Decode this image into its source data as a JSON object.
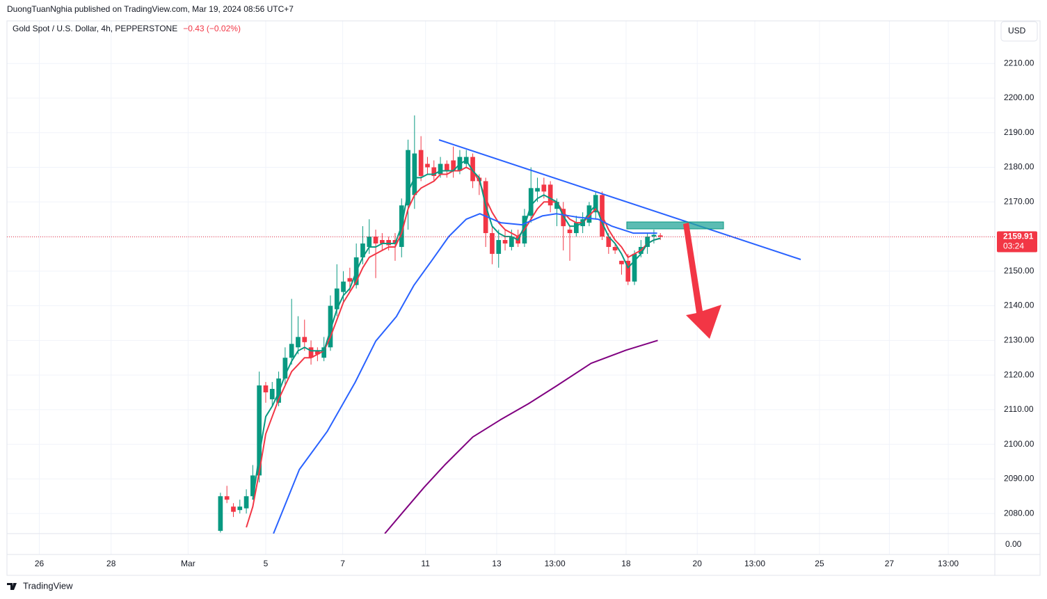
{
  "header": {
    "publisher": "DuongTuanNghia published on TradingView.com, Mar 19, 2024 08:56 UTC+7"
  },
  "chart_data": {
    "type": "candlestick",
    "title": "Gold Spot / U.S. Dollar, 4h, PEPPERSTONE",
    "change_label": "−0.43 (−0.02%)",
    "currency": "USD",
    "up_color": "#089981",
    "down_color": "#f23645",
    "x": [
      0,
      1,
      2,
      3,
      4,
      5,
      6,
      7,
      8,
      9,
      10,
      11,
      12,
      13,
      14,
      15,
      16,
      17,
      18,
      19,
      20,
      21,
      22,
      23,
      24,
      25,
      26,
      27,
      28,
      29,
      30,
      31,
      32,
      33,
      34,
      35,
      36,
      37,
      38,
      39,
      40,
      41,
      42,
      43,
      44,
      45,
      46,
      47,
      48,
      49,
      50,
      51,
      52,
      53,
      54,
      55,
      56,
      57,
      58,
      59,
      60,
      61,
      62,
      63,
      64,
      65,
      66,
      67,
      68
    ],
    "open": [
      2075,
      2085,
      2082,
      2081,
      2081.5,
      2085,
      2091,
      2117,
      2113,
      2112,
      2119,
      2125,
      2128,
      2131,
      2128,
      2127,
      2125,
      2128,
      2139,
      2144,
      2148,
      2146,
      2154,
      2157,
      2160,
      2159,
      2159,
      2159,
      2157,
      2169,
      2172,
      2185,
      2181,
      2180,
      2178,
      2181,
      2182,
      2179,
      2181,
      2183,
      2177,
      2176,
      2161,
      2155,
      2159,
      2157,
      2160,
      2158,
      2166,
      2173,
      2175,
      2175,
      2168,
      2168,
      2162,
      2161,
      2163,
      2164,
      2167,
      2172,
      2160,
      2157,
      2153,
      2153,
      2147,
      2155,
      2157,
      2160,
      2160.34
    ],
    "high": [
      2086,
      2088,
      2083,
      2084,
      2087,
      2094,
      2121,
      2118,
      2118,
      2121,
      2128,
      2142,
      2137,
      2136,
      2130,
      2128,
      2131,
      2143,
      2152,
      2150,
      2151,
      2158,
      2163,
      2165,
      2162,
      2161,
      2160,
      2161,
      2171,
      2188,
      2195,
      2189,
      2183,
      2182,
      2183,
      2182,
      2186,
      2185,
      2185,
      2184,
      2178,
      2177,
      2163,
      2162,
      2162,
      2162,
      2162,
      2168,
      2180,
      2177,
      2177,
      2176,
      2171,
      2170,
      2163,
      2166,
      2167,
      2170,
      2173,
      2173,
      2161,
      2158,
      2153,
      2155,
      2156,
      2159,
      2161,
      2162,
      2161
    ],
    "low": [
      2074.5,
      2083,
      2079,
      2080,
      2080,
      2084,
      2089,
      2112,
      2111,
      2111,
      2117,
      2123,
      2126,
      2127,
      2123,
      2124,
      2124,
      2127,
      2137,
      2141,
      2144,
      2145,
      2152,
      2155,
      2148,
      2156,
      2156,
      2153,
      2154,
      2162,
      2168,
      2176,
      2178,
      2176,
      2177,
      2177,
      2177,
      2178,
      2180,
      2174,
      2172,
      2157,
      2152,
      2151,
      2156,
      2156,
      2157,
      2157,
      2164,
      2170,
      2171,
      2167,
      2163,
      2156,
      2153,
      2160,
      2161,
      2163,
      2165,
      2159,
      2155,
      2155,
      2149,
      2146,
      2146,
      2154,
      2155,
      2158,
      2159
    ],
    "close": [
      2085,
      2084,
      2080.5,
      2082,
      2085,
      2091,
      2117,
      2115,
      2116,
      2119,
      2125,
      2129,
      2131,
      2129.5,
      2125,
      2126,
      2128,
      2140,
      2145,
      2147,
      2147,
      2154,
      2158,
      2160,
      2158,
      2158,
      2157.5,
      2158,
      2169,
      2185,
      2184,
      2177.5,
      2180,
      2177.5,
      2181,
      2179,
      2179,
      2183,
      2183,
      2176,
      2176,
      2161,
      2155,
      2159,
      2158,
      2160,
      2158,
      2166,
      2174,
      2174,
      2173,
      2169,
      2170,
      2163,
      2161,
      2164,
      2165,
      2169,
      2172,
      2160,
      2157,
      2156,
      2152,
      2147,
      2155,
      2157,
      2160,
      2160.5,
      2159.91
    ],
    "series": [
      {
        "color": "#f23645",
        "x": [
          4,
          5,
          6,
          7,
          8,
          9,
          10,
          11,
          12,
          13,
          14,
          15,
          16,
          17,
          18,
          19,
          20,
          21,
          22,
          23,
          24,
          25,
          26,
          27,
          28,
          29,
          30,
          31,
          32,
          33,
          34,
          35,
          36,
          37,
          38,
          39,
          40,
          41,
          42,
          43,
          44,
          45,
          46,
          47,
          48,
          49,
          50,
          51,
          52,
          53,
          54,
          55,
          56,
          57,
          58,
          59,
          60,
          61,
          62,
          63,
          64,
          65,
          66,
          67,
          68
        ],
        "values": [
          2076,
          2082,
          2092,
          2103,
          2108,
          2113,
          2117,
          2121,
          2123,
          2125,
          2125,
          2126,
          2127,
          2131,
          2136,
          2141,
          2144,
          2147,
          2151,
          2154,
          2155,
          2156,
          2157,
          2157,
          2161,
          2168,
          2172,
          2174,
          2175,
          2176,
          2178,
          2178,
          2179,
          2179,
          2180,
          2179,
          2176,
          2171,
          2167,
          2164,
          2162,
          2161,
          2160,
          2162,
          2165,
          2168,
          2170,
          2170,
          2170,
          2167,
          2165,
          2164,
          2164,
          2166,
          2168,
          2166,
          2162,
          2159,
          2157,
          2154,
          2155,
          2156,
          2158,
          2159,
          2159.5
        ]
      },
      {
        "color": "#089981",
        "x": [
          5,
          6,
          7,
          8,
          9,
          10,
          11,
          12,
          13,
          14,
          15,
          16,
          17,
          18,
          19,
          20,
          21,
          22,
          23,
          24,
          25,
          26,
          27,
          28,
          29,
          30,
          31,
          32,
          33,
          34,
          35,
          36,
          37,
          38,
          39,
          40,
          41,
          42,
          43,
          44,
          45,
          46,
          47,
          48,
          49,
          50,
          51,
          52,
          53,
          54,
          55,
          56,
          57,
          58,
          59,
          60,
          61,
          62,
          63,
          64,
          65,
          66,
          67,
          68
        ],
        "values": [
          2084,
          2097,
          2108,
          2111,
          2115,
          2120,
          2124,
          2127,
          2128,
          2127,
          2127,
          2127,
          2133,
          2139,
          2143,
          2145,
          2150,
          2154,
          2157,
          2157,
          2158,
          2158,
          2158,
          2163,
          2173,
          2177,
          2177,
          2178,
          2178,
          2179,
          2179,
          2179,
          2181,
          2182,
          2179,
          2177,
          2169,
          2163,
          2161,
          2160,
          2160,
          2159,
          2163,
          2169,
          2171,
          2172,
          2171,
          2170,
          2166,
          2163,
          2163,
          2164,
          2167,
          2169,
          2164,
          2160,
          2158,
          2155,
          2151,
          2153,
          2155,
          2158,
          2159,
          2159.5
        ]
      },
      {
        "color": "#2962ff",
        "x": [
          8.2,
          12.2,
          16.5,
          20.8,
          24,
          27.2,
          29.9,
          32.6,
          35.3,
          38,
          40.1,
          43.3,
          46.6,
          49.8,
          51.9,
          55.2,
          58.4,
          60.5,
          63.8,
          67.5
        ],
        "values": [
          2074.2,
          2092.7,
          2103.7,
          2117.8,
          2129.8,
          2136.9,
          2145.9,
          2152.9,
          2160,
          2165,
          2166.6,
          2164,
          2163.4,
          2166,
          2166.6,
          2165.6,
          2165,
          2163,
          2161,
          2161
        ]
      },
      {
        "color": "#800080",
        "x": [
          25.4,
          28.3,
          31.5,
          34.7,
          39,
          43.3,
          47.6,
          51.9,
          57.3,
          62.7,
          67.6
        ],
        "values": [
          2074.2,
          2080.6,
          2087.6,
          2094.1,
          2102.1,
          2107.1,
          2111.7,
          2116.8,
          2123.4,
          2127.2,
          2130
        ]
      }
    ],
    "xlim": [
      -33,
      119.7
    ],
    "ylim": [
      2074.2,
      2222.3
    ],
    "xticks": [
      {
        "value": -28,
        "label": "26"
      },
      {
        "value": -16.9,
        "label": "28"
      },
      {
        "value": -5,
        "label": "Mar"
      },
      {
        "value": 7,
        "label": "5"
      },
      {
        "value": 18.9,
        "label": "7"
      },
      {
        "value": 31.7,
        "label": "11"
      },
      {
        "value": 42.7,
        "label": "13"
      },
      {
        "value": 51.7,
        "label": "13:00"
      },
      {
        "value": 62.7,
        "label": "18"
      },
      {
        "value": 73.7,
        "label": "20"
      },
      {
        "value": 82.6,
        "label": "13:00"
      },
      {
        "value": 92.6,
        "label": "25"
      },
      {
        "value": 103.4,
        "label": "27"
      },
      {
        "value": 112.5,
        "label": "13:00"
      }
    ],
    "yticks": [
      {
        "value": 2080,
        "label": "2080.00"
      },
      {
        "value": 2090,
        "label": "2090.00"
      },
      {
        "value": 2100,
        "label": "2100.00"
      },
      {
        "value": 2110,
        "label": "2110.00"
      },
      {
        "value": 2120,
        "label": "2120.00"
      },
      {
        "value": 2130,
        "label": "2130.00"
      },
      {
        "value": 2140,
        "label": "2140.00"
      },
      {
        "value": 2150,
        "label": "2150.00"
      },
      {
        "value": 2160,
        "label": "2160.00"
      },
      {
        "value": 2170,
        "label": "2170.00"
      },
      {
        "value": 2180,
        "label": "2180.00"
      },
      {
        "value": 2190,
        "label": "2190.00"
      },
      {
        "value": 2200,
        "label": "2200.00"
      },
      {
        "value": 2210,
        "label": "2210.00"
      }
    ],
    "grid": true,
    "last_price": {
      "value": 2159.91,
      "label": "2159.91"
    },
    "countdown": "03:24",
    "lower_pane_label": "0.00"
  },
  "footer": {
    "brand": "TradingView"
  }
}
